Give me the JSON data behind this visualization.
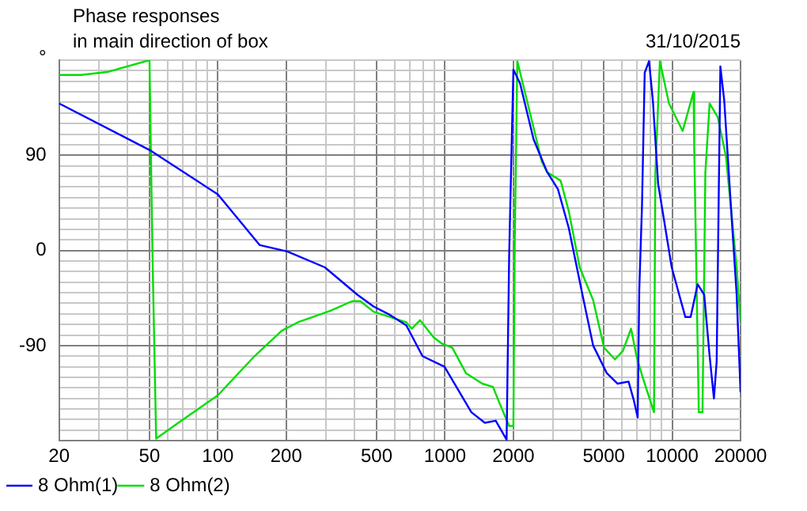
{
  "chart_data": {
    "type": "line",
    "title": "Phase responses",
    "subtitle": "in main direction of box",
    "ylabel": "°",
    "annotations": [
      "31/10/2015"
    ],
    "xlim": [
      20,
      20000
    ],
    "ylim": [
      -180,
      180
    ],
    "log": "x",
    "grid": true,
    "legend": "bottom left",
    "marker": "none",
    "line_style": "solid",
    "xticks": [
      20,
      {
        "value": 30,
        "label": null
      },
      {
        "value": 40,
        "label": null
      },
      50,
      {
        "value": 60,
        "label": null
      },
      {
        "value": 70,
        "label": null
      },
      {
        "value": 80,
        "label": null
      },
      {
        "value": 90,
        "label": null
      },
      100,
      200,
      {
        "value": 300,
        "label": null
      },
      {
        "value": 400,
        "label": null
      },
      500,
      {
        "value": 600,
        "label": null
      },
      {
        "value": 700,
        "label": null
      },
      {
        "value": 800,
        "label": null
      },
      {
        "value": 900,
        "label": null
      },
      1000,
      2000,
      {
        "value": 3000,
        "label": null
      },
      {
        "value": 4000,
        "label": null
      },
      5000,
      {
        "value": 6000,
        "label": null
      },
      {
        "value": 7000,
        "label": null
      },
      {
        "value": 8000,
        "label": null
      },
      {
        "value": 9000,
        "label": null
      },
      10000,
      20000
    ],
    "yticks": [
      {
        "value": -180,
        "label": null
      },
      {
        "value": -170,
        "label": null
      },
      {
        "value": -160,
        "label": null
      },
      {
        "value": -150,
        "label": null
      },
      {
        "value": -140,
        "label": null
      },
      {
        "value": -130,
        "label": null
      },
      {
        "value": -120,
        "label": null
      },
      {
        "value": -110,
        "label": null
      },
      {
        "value": -100,
        "label": null
      },
      -90,
      {
        "value": -80,
        "label": null
      },
      {
        "value": -70,
        "label": null
      },
      {
        "value": -60,
        "label": null
      },
      {
        "value": -50,
        "label": null
      },
      {
        "value": -40,
        "label": null
      },
      {
        "value": -30,
        "label": null
      },
      {
        "value": -20,
        "label": null
      },
      {
        "value": -10,
        "label": null
      },
      0,
      {
        "value": 10,
        "label": null
      },
      {
        "value": 20,
        "label": null
      },
      {
        "value": 30,
        "label": null
      },
      {
        "value": 40,
        "label": null
      },
      {
        "value": 50,
        "label": null
      },
      {
        "value": 60,
        "label": null
      },
      {
        "value": 70,
        "label": null
      },
      {
        "value": 80,
        "label": null
      },
      90,
      {
        "value": 100,
        "label": null
      },
      {
        "value": 110,
        "label": null
      },
      {
        "value": 120,
        "label": null
      },
      {
        "value": 130,
        "label": null
      },
      {
        "value": 140,
        "label": null
      },
      {
        "value": 150,
        "label": null
      },
      {
        "value": 160,
        "label": null
      },
      {
        "value": 170,
        "label": null
      },
      {
        "value": 180,
        "label": null
      }
    ],
    "series": [
      {
        "name": "8 Ohm(1)",
        "color": "#0000ff",
        "x": [
          20,
          50,
          100,
          153,
          202,
          296,
          412,
          485,
          573,
          676,
          796,
          995,
          1306,
          1498,
          1672,
          1867,
          1916,
          2000,
          2140,
          2455,
          2818,
          3141,
          3508,
          4029,
          4490,
          5152,
          5755,
          6427,
          6784,
          7050,
          7165,
          7365,
          7570,
          7910,
          8222,
          8676,
          9954,
          11430,
          12060,
          12950,
          13840,
          14620,
          15270,
          15700,
          16300,
          16950,
          18200,
          19230,
          20000
        ],
        "values": [
          139,
          95,
          53,
          5,
          -1,
          -16,
          -42,
          -53,
          -61,
          -71,
          -100,
          -110,
          -153,
          -163,
          -161,
          -179,
          -5,
          171,
          158,
          105,
          74,
          58,
          21,
          -42,
          -90,
          -116,
          -126,
          -124,
          -142,
          -158,
          -37,
          42,
          168,
          179,
          142,
          63,
          -16,
          -63,
          -63,
          -32,
          -42,
          -100,
          -140,
          -105,
          174,
          142,
          37,
          -42,
          -134
        ]
      },
      {
        "name": "8 Ohm(2)",
        "color": "#00dd00",
        "x": [
          20,
          25,
          33,
          50,
          51.5,
          53.5,
          67,
          100,
          145,
          191,
          225,
          313,
          390,
          424,
          485,
          676,
          714,
          776,
          890,
          966,
          1077,
          1236,
          1459,
          1626,
          1719,
          1916,
          2000,
          2028,
          2081,
          2324,
          2667,
          2818,
          3229,
          3508,
          3917,
          4490,
          5013,
          5599,
          6068,
          6593,
          6966,
          7365,
          8318,
          8435,
          8830,
          9683,
          11120,
          12420,
          12500,
          13100,
          13600,
          14000,
          14620,
          15880,
          17250,
          19230,
          20000
        ],
        "values": [
          166,
          166,
          169,
          180,
          0,
          -178,
          -163,
          -137,
          -100,
          -76,
          -68,
          -57,
          -48,
          -48,
          -58,
          -68,
          -74,
          -66,
          -82,
          -88,
          -92,
          -116,
          -126,
          -129,
          -142,
          -166,
          -166,
          10,
          179,
          137,
          84,
          74,
          66,
          37,
          -16,
          -47,
          -92,
          -103,
          -95,
          -74,
          -100,
          -118,
          -153,
          74,
          179,
          139,
          113,
          150,
          100,
          -153,
          -153,
          74,
          139,
          126,
          89,
          -16,
          -68
        ]
      }
    ]
  }
}
